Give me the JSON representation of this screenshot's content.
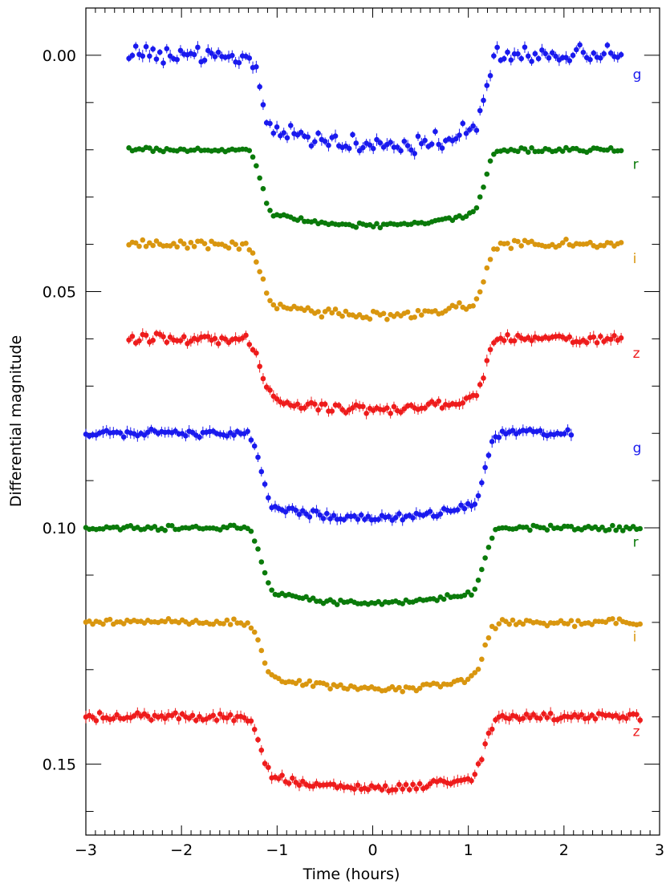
{
  "chart_data": {
    "type": "scatter",
    "title": "",
    "xlabel": "Time (hours)",
    "ylabel": "Differential magnitude",
    "xlim": [
      -3,
      3
    ],
    "ylim": [
      0.165,
      -0.01
    ],
    "y_inverted": true,
    "x_major_ticks": [
      -3,
      -2,
      -1,
      0,
      1,
      2,
      3
    ],
    "x_tick_labels": [
      "−3",
      "−2",
      "−1",
      "0",
      "1",
      "2",
      "3"
    ],
    "x_minor_step": 0.1,
    "y_major_ticks": [
      0.0,
      0.05,
      0.1,
      0.15
    ],
    "y_tick_labels": [
      "0.00",
      "0.05",
      "0.10",
      "0.15"
    ],
    "y_minor_step": 0.01,
    "transit": {
      "ingress_start": -1.32,
      "ingress_end": -1.02,
      "egress_start": 1.0,
      "egress_end": 1.32
    },
    "series": [
      {
        "label": "g",
        "color": "#1a1aee",
        "baseline": 0.0,
        "depth": 0.019,
        "x_start": -2.55,
        "x_end": 2.6,
        "errorbars": true,
        "scatter": 0.0024,
        "label_x": 2.72,
        "label_y": 0.005
      },
      {
        "label": "r",
        "color": "#0a7a0a",
        "baseline": 0.02,
        "depth": 0.016,
        "x_start": -2.55,
        "x_end": 2.6,
        "errorbars": false,
        "scatter": 0.0006,
        "label_x": 2.72,
        "label_y": 0.024
      },
      {
        "label": "i",
        "color": "#d9960f",
        "baseline": 0.04,
        "depth": 0.015,
        "x_start": -2.55,
        "x_end": 2.6,
        "errorbars": false,
        "scatter": 0.0011,
        "label_x": 2.72,
        "label_y": 0.044
      },
      {
        "label": "z",
        "color": "#ee1c1c",
        "baseline": 0.06,
        "depth": 0.015,
        "x_start": -2.55,
        "x_end": 2.6,
        "errorbars": true,
        "scatter": 0.0012,
        "label_x": 2.72,
        "label_y": 0.064
      },
      {
        "label": "g",
        "color": "#1a1aee",
        "baseline": 0.08,
        "depth": 0.018,
        "x_start": -3.0,
        "x_end": 2.1,
        "errorbars": true,
        "scatter": 0.001,
        "label_x": 2.72,
        "label_y": 0.084
      },
      {
        "label": "r",
        "color": "#0a7a0a",
        "baseline": 0.1,
        "depth": 0.016,
        "x_start": -3.0,
        "x_end": 2.82,
        "errorbars": false,
        "scatter": 0.0007,
        "label_x": 2.72,
        "label_y": 0.104
      },
      {
        "label": "i",
        "color": "#d9960f",
        "baseline": 0.12,
        "depth": 0.014,
        "x_start": -3.0,
        "x_end": 2.82,
        "errorbars": false,
        "scatter": 0.001,
        "label_x": 2.72,
        "label_y": 0.124
      },
      {
        "label": "z",
        "color": "#ee1c1c",
        "baseline": 0.14,
        "depth": 0.015,
        "x_start": -3.0,
        "x_end": 2.82,
        "errorbars": true,
        "scatter": 0.001,
        "label_x": 2.72,
        "label_y": 0.144
      }
    ]
  }
}
